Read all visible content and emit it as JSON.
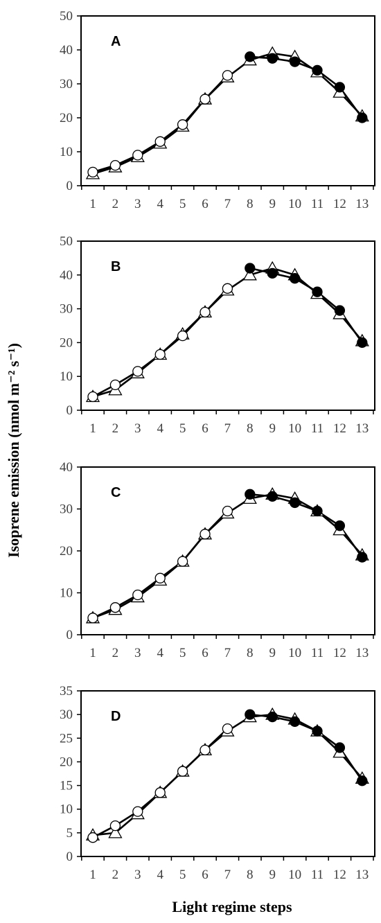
{
  "figure": {
    "ylabel": "Isoprene  emission  (nmol m⁻² s⁻¹)",
    "xlabel": "Light regime steps"
  },
  "chart_data": [
    {
      "type": "line",
      "panel": "A",
      "x": [
        1,
        2,
        3,
        4,
        5,
        6,
        7,
        8,
        9,
        10,
        11,
        12,
        13
      ],
      "categories": [
        "1",
        "2",
        "3",
        "4",
        "5",
        "6",
        "7",
        "8",
        "9",
        "10",
        "11",
        "12",
        "13"
      ],
      "ylim": [
        0,
        50
      ],
      "yticks": [
        0,
        10,
        20,
        30,
        40,
        50
      ],
      "series": [
        {
          "marker": "open-triangle",
          "values": [
            3.5,
            5.5,
            8.5,
            12.5,
            17.5,
            25.5,
            32,
            37,
            39,
            38,
            33.5,
            27.5,
            20.5
          ]
        },
        {
          "marker": "open-circle",
          "values": [
            4,
            6,
            9,
            13,
            18,
            25.5,
            32.5,
            null,
            null,
            null,
            null,
            null,
            null
          ]
        },
        {
          "marker": "filled-circle",
          "values": [
            null,
            null,
            null,
            null,
            null,
            null,
            null,
            38,
            37.5,
            36.5,
            34,
            29,
            20
          ]
        }
      ]
    },
    {
      "type": "line",
      "panel": "B",
      "x": [
        1,
        2,
        3,
        4,
        5,
        6,
        7,
        8,
        9,
        10,
        11,
        12,
        13
      ],
      "categories": [
        "1",
        "2",
        "3",
        "4",
        "5",
        "6",
        "7",
        "8",
        "9",
        "10",
        "11",
        "12",
        "13"
      ],
      "ylim": [
        0,
        50
      ],
      "yticks": [
        0,
        10,
        20,
        30,
        40,
        50
      ],
      "series": [
        {
          "marker": "open-triangle",
          "values": [
            4,
            6,
            11,
            16.5,
            22.5,
            29,
            35.5,
            40,
            42,
            40,
            34.5,
            28.5,
            20.5
          ]
        },
        {
          "marker": "open-circle",
          "values": [
            4,
            7.5,
            11.5,
            16.5,
            22,
            29,
            36,
            null,
            null,
            null,
            null,
            null,
            null
          ]
        },
        {
          "marker": "filled-circle",
          "values": [
            null,
            null,
            null,
            null,
            null,
            null,
            null,
            42,
            40.5,
            39,
            35,
            29.5,
            20
          ]
        }
      ]
    },
    {
      "type": "line",
      "panel": "C",
      "x": [
        1,
        2,
        3,
        4,
        5,
        6,
        7,
        8,
        9,
        10,
        11,
        12,
        13
      ],
      "categories": [
        "1",
        "2",
        "3",
        "4",
        "5",
        "6",
        "7",
        "8",
        "9",
        "10",
        "11",
        "12",
        "13"
      ],
      "ylim": [
        0,
        40
      ],
      "yticks": [
        0,
        10,
        20,
        30,
        40
      ],
      "series": [
        {
          "marker": "open-triangle",
          "values": [
            4,
            6,
            9,
            13,
            17.5,
            24,
            29,
            32.5,
            33.5,
            32.5,
            29.5,
            25,
            19
          ]
        },
        {
          "marker": "open-circle",
          "values": [
            4,
            6.5,
            9.5,
            13.5,
            17.5,
            24,
            29.5,
            null,
            null,
            null,
            null,
            null,
            null
          ]
        },
        {
          "marker": "filled-circle",
          "values": [
            null,
            null,
            null,
            null,
            null,
            null,
            null,
            33.5,
            33,
            31.5,
            29.5,
            26,
            18.5
          ]
        }
      ]
    },
    {
      "type": "line",
      "panel": "D",
      "x": [
        1,
        2,
        3,
        4,
        5,
        6,
        7,
        8,
        9,
        10,
        11,
        12,
        13
      ],
      "categories": [
        "1",
        "2",
        "3",
        "4",
        "5",
        "6",
        "7",
        "8",
        "9",
        "10",
        "11",
        "12",
        "13"
      ],
      "ylim": [
        0,
        35
      ],
      "yticks": [
        0,
        5,
        10,
        15,
        20,
        25,
        30,
        35
      ],
      "series": [
        {
          "marker": "open-triangle",
          "values": [
            4.5,
            5,
            9,
            13.5,
            18,
            22.5,
            26.5,
            29.5,
            30,
            29,
            26.5,
            22,
            16.5
          ]
        },
        {
          "marker": "open-circle",
          "values": [
            4,
            6.5,
            9.5,
            13.5,
            18,
            22.5,
            27,
            null,
            null,
            null,
            null,
            null,
            null
          ]
        },
        {
          "marker": "filled-circle",
          "values": [
            null,
            null,
            null,
            null,
            null,
            null,
            null,
            30,
            29.5,
            28.5,
            26.5,
            23,
            16
          ]
        }
      ]
    }
  ]
}
